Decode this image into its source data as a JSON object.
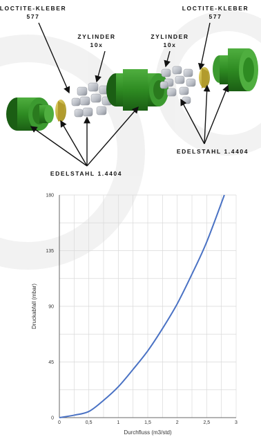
{
  "labels": {
    "loctite_left": [
      "LOCTITE-KLEBER",
      "577"
    ],
    "loctite_right": [
      "LOCTITE-KLEBER",
      "577"
    ],
    "zylinder_left": [
      "ZYLINDER",
      "10x"
    ],
    "zylinder_right": [
      "ZYLINDER",
      "10x"
    ],
    "edelstahl_right": "EDELSTAHL 1.4404",
    "edelstahl_bottom": "EDELSTAHL 1.4404"
  },
  "colors": {
    "green": "#2e8b22",
    "green_dark": "#1b5e14",
    "green_light": "#55b545",
    "gold": "#c9b23a",
    "steel": "#b8bcc4",
    "line": "#4a72c4",
    "grid": "#d9d9d9"
  },
  "chart_data": {
    "type": "line",
    "xlabel": "Durchfluss (m3/std)",
    "ylabel": "Druckabfall (mbar)",
    "xlim": [
      0,
      3
    ],
    "ylim": [
      0,
      180
    ],
    "x_ticks": [
      "0",
      "0,5",
      "1",
      "1,5",
      "2",
      "2,5",
      "3"
    ],
    "y_ticks": [
      "0",
      "45",
      "90",
      "135",
      "180"
    ],
    "grid": true,
    "series": [
      {
        "x": [
          0,
          0.25,
          0.5,
          0.75,
          1.0,
          1.25,
          1.5,
          1.75,
          2.0,
          2.25,
          2.5,
          2.8
        ],
        "y": [
          0,
          2,
          5,
          14,
          25,
          39,
          54,
          72,
          92,
          116,
          142,
          180
        ]
      }
    ]
  }
}
